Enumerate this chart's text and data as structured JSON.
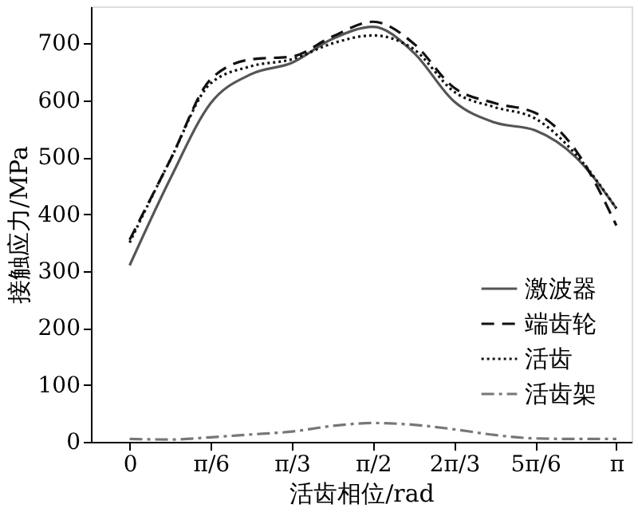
{
  "chart_data": {
    "type": "line",
    "xlabel": "活齿相位/rad",
    "ylabel": "接触应力/MPa",
    "x": [
      0,
      0.2618,
      0.5236,
      0.7854,
      1.0472,
      1.309,
      1.5708,
      1.8326,
      2.0944,
      2.3562,
      2.618,
      2.8798,
      3.1416
    ],
    "series": [
      {
        "name": "激波器",
        "color": "#555555",
        "line_style": "solid",
        "values": [
          310,
          462,
          595,
          646,
          666,
          708,
          729,
          684,
          598,
          561,
          547,
          500,
          410
        ]
      },
      {
        "name": "端齿轮",
        "color": "#111111",
        "line_style": "dashed",
        "values": [
          355,
          495,
          637,
          672,
          677,
          712,
          738,
          700,
          622,
          595,
          578,
          512,
          380
        ]
      },
      {
        "name": "活齿",
        "color": "#111111",
        "line_style": "dotted",
        "values": [
          350,
          495,
          630,
          660,
          672,
          700,
          714,
          690,
          615,
          588,
          568,
          505,
          410
        ]
      },
      {
        "name": "活齿架",
        "color": "#777777",
        "line_style": "dashdot",
        "values": [
          5,
          4,
          8,
          13,
          18,
          28,
          33,
          30,
          22,
          12,
          6,
          5,
          5
        ]
      }
    ],
    "xlim": [
      -0.25,
      3.24
    ],
    "ylim": [
      0,
      765
    ],
    "xticks": [
      0,
      {
        "value": 0.5236,
        "label": "π/6"
      },
      {
        "value": 1.0472,
        "label": "π/3"
      },
      {
        "value": 1.5708,
        "label": "π/2"
      },
      {
        "value": 2.0944,
        "label": "2π/3"
      },
      {
        "value": 2.618,
        "label": "5π/6"
      },
      {
        "value": 3.1416,
        "label": "π"
      }
    ],
    "yticks": [
      0,
      100,
      200,
      300,
      400,
      500,
      600,
      700
    ],
    "grid": false,
    "legend": "bottom right",
    "marker": "none"
  }
}
